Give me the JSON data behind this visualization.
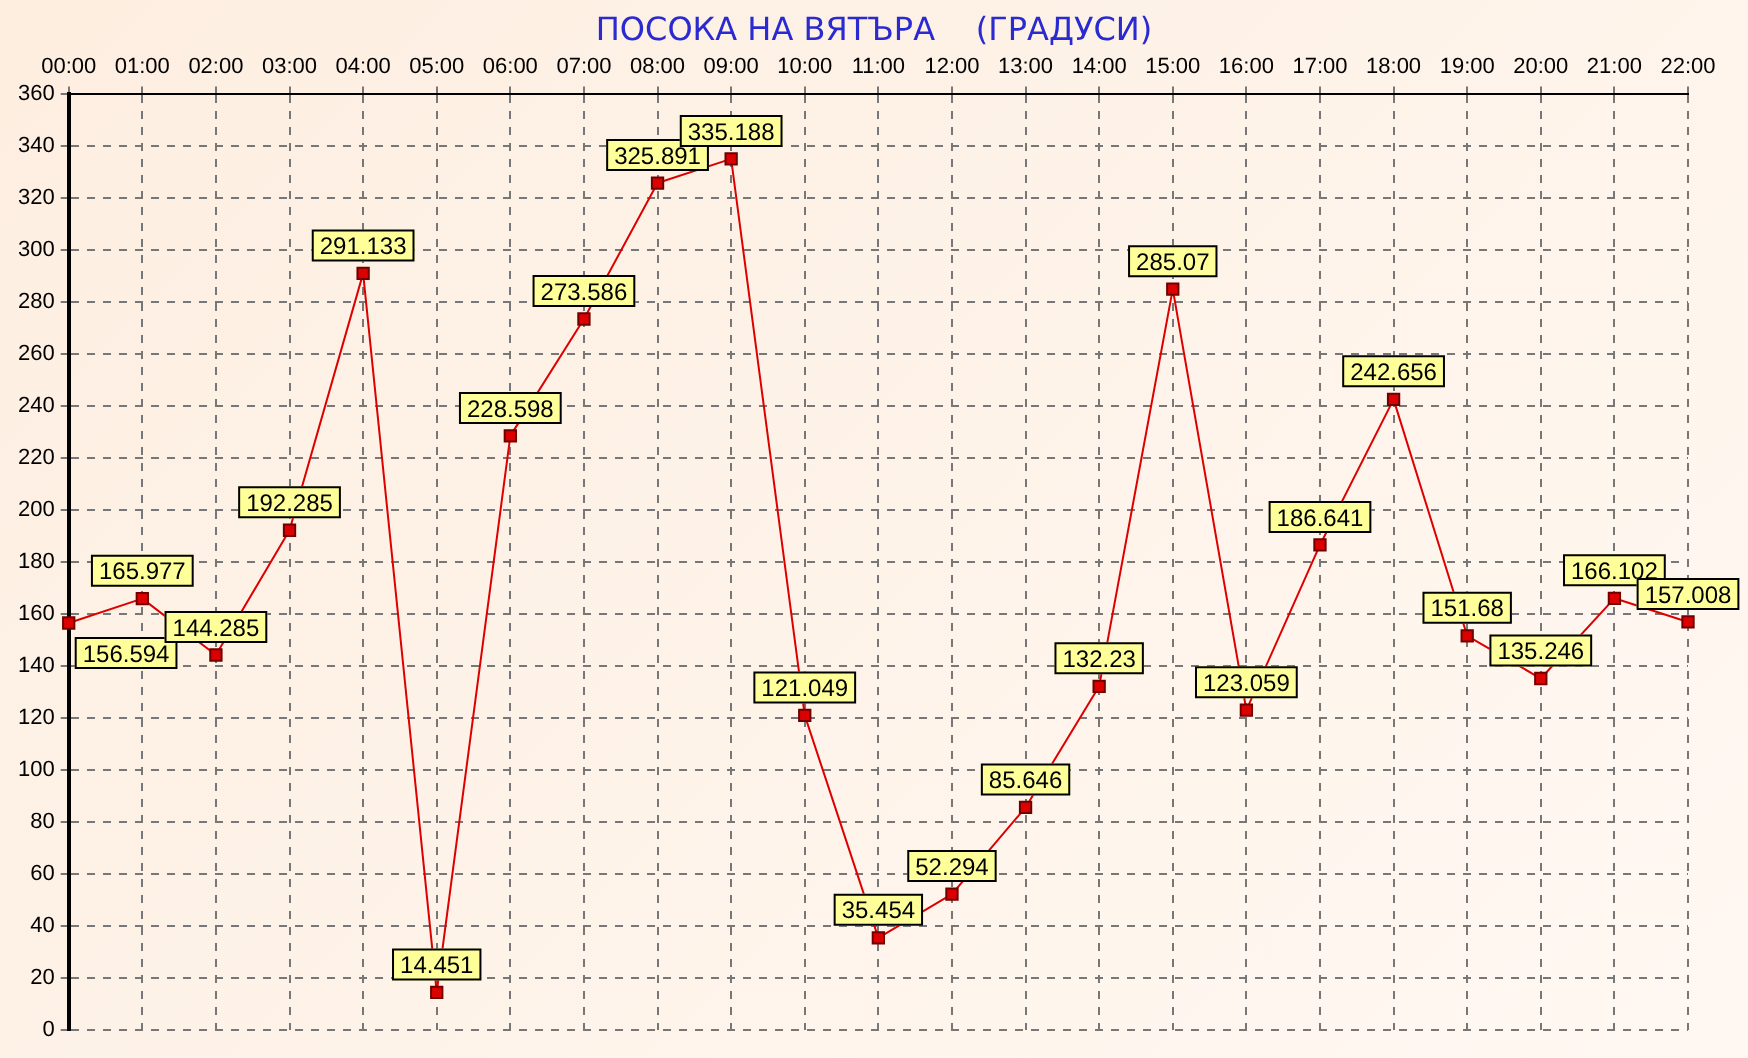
{
  "chart_data": {
    "type": "line",
    "title": "ПОСОКА НА ВЯТЪРА    (ГРАДУСИ)",
    "categories": [
      "00:00",
      "01:00",
      "02:00",
      "03:00",
      "04:00",
      "05:00",
      "06:00",
      "07:00",
      "08:00",
      "09:00",
      "10:00",
      "11:00",
      "12:00",
      "13:00",
      "14:00",
      "15:00",
      "16:00",
      "17:00",
      "18:00",
      "19:00",
      "20:00",
      "21:00",
      "22:00"
    ],
    "series": [
      {
        "color": "#dd0000",
        "values": [
          156.594,
          165.977,
          144.285,
          192.285,
          291.133,
          14.451,
          228.598,
          273.586,
          325.891,
          335.188,
          121.049,
          35.454,
          52.294,
          85.646,
          132.23,
          285.07,
          123.059,
          186.641,
          242.656,
          151.68,
          135.246,
          166.102,
          157.008
        ]
      }
    ],
    "ylim": [
      0,
      360
    ],
    "yticks": [
      0,
      20,
      40,
      60,
      80,
      100,
      120,
      140,
      160,
      180,
      200,
      220,
      240,
      260,
      280,
      300,
      320,
      340,
      360
    ],
    "grid": true,
    "legend": false,
    "marker": "square",
    "line_style": "solid",
    "data_labels": true
  }
}
